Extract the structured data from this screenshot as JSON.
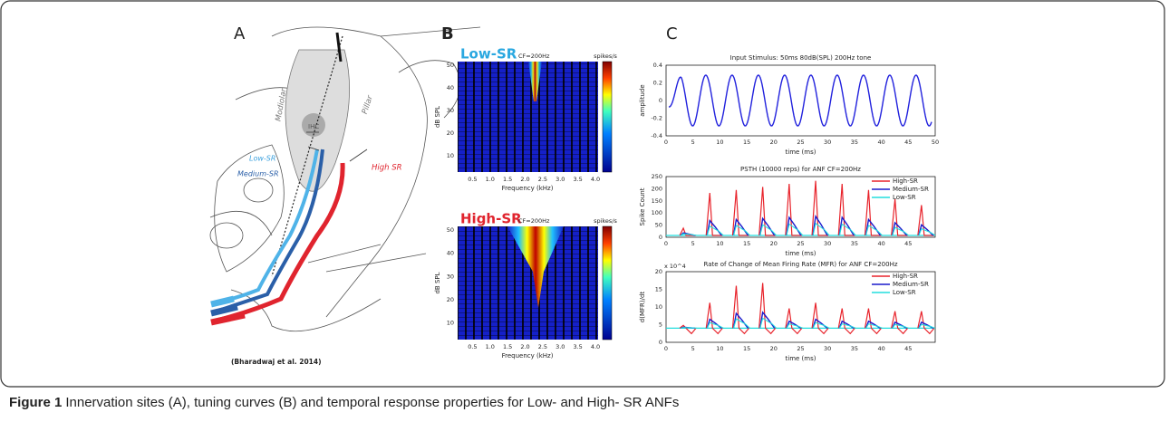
{
  "figure": {
    "panel_a": {
      "label": "A",
      "annotations": [
        "Modiolar",
        "Pillar",
        "IHC",
        "Low-SR",
        "Medium-SR",
        "High SR"
      ],
      "citation": "(Bharadwaj et al. 2014)"
    },
    "panel_b": {
      "label": "B",
      "plots": [
        {
          "title": "Low-SR",
          "note": "CF=200Hz",
          "colorbar_label": "spikes/s",
          "ylabel": "dB SPL",
          "xlabel": "Frequency (kHz)",
          "yticks": [
            "50",
            "40",
            "30",
            "20",
            "10"
          ],
          "xticks": [
            "0.5",
            "1.0",
            "1.5",
            "2.0",
            "2.5",
            "3.0",
            "3.5",
            "4.0"
          ]
        },
        {
          "title": "High-SR",
          "note": "CF=200Hz",
          "colorbar_label": "spikes/s",
          "ylabel": "dB SPL",
          "xlabel": "Frequency (kHz)",
          "yticks": [
            "50",
            "40",
            "30",
            "20",
            "10"
          ],
          "xticks": [
            "0.5",
            "1.0",
            "1.5",
            "2.0",
            "2.5",
            "3.0",
            "3.5",
            "4.0"
          ]
        }
      ]
    },
    "panel_c": {
      "label": "C",
      "plots": [
        {
          "title": "Input Stimulus: 50ms 80dB(SPL) 200Hz tone",
          "ylabel": "amplitude",
          "xlabel": "time (ms)",
          "yticks": [
            "0.4",
            "0.2",
            "0",
            "-0.2",
            "-0.4"
          ],
          "xticks": [
            "0",
            "5",
            "10",
            "15",
            "20",
            "25",
            "30",
            "35",
            "40",
            "45",
            "50"
          ]
        },
        {
          "title": "PSTH (10000 reps) for ANF CF=200Hz",
          "ylabel": "Spike Count",
          "xlabel": "time (ms)",
          "yticks": [
            "250",
            "200",
            "150",
            "100",
            "50",
            "0"
          ],
          "xticks": [
            "0",
            "5",
            "10",
            "15",
            "20",
            "25",
            "30",
            "35",
            "40",
            "45"
          ],
          "legend": [
            "High-SR",
            "Medium-SR",
            "Low-SR"
          ]
        },
        {
          "title": "Rate of Change of Mean Firing Rate (MFR) for ANF CF=200Hz",
          "multiplier": "x 10^4",
          "ylabel": "d(MFR)/dt",
          "xlabel": "time (ms)",
          "yticks": [
            "20",
            "15",
            "10",
            "5",
            "0"
          ],
          "xticks": [
            "0",
            "5",
            "10",
            "15",
            "20",
            "25",
            "30",
            "35",
            "40",
            "45"
          ],
          "legend": [
            "High-SR",
            "Medium-SR",
            "Low-SR"
          ]
        }
      ]
    }
  },
  "caption": {
    "label": "Figure 1",
    "text": "Innervation sites (A), tuning curves (B) and temporal response properties for Low- and High- SR ANFs"
  }
}
